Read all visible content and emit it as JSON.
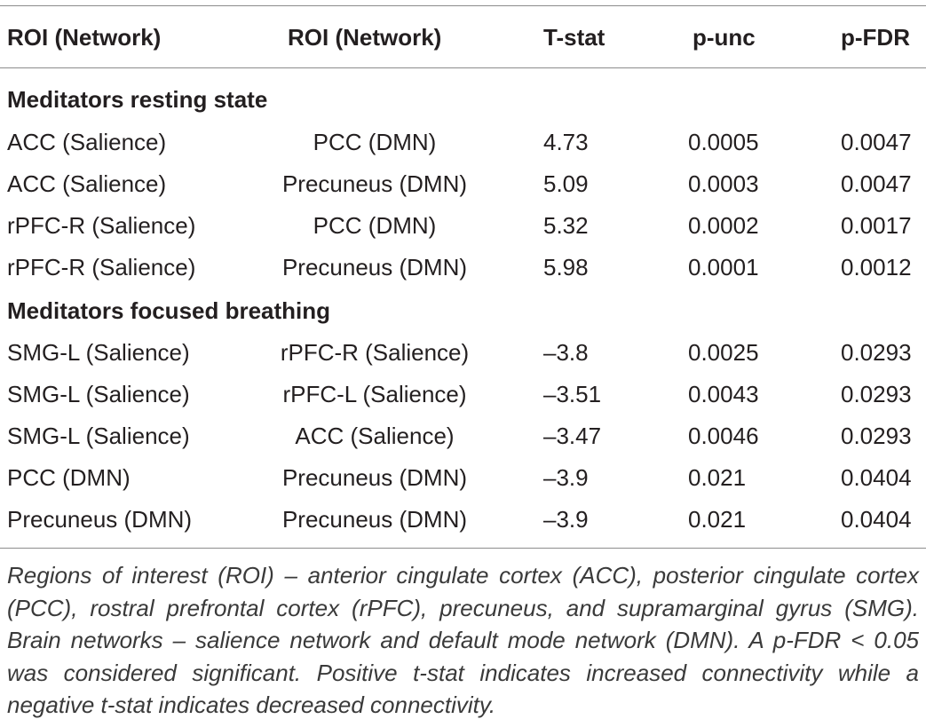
{
  "table": {
    "headers": [
      "ROI (Network)",
      "ROI (Network)",
      "T-stat",
      "p-unc",
      "p-FDR"
    ],
    "sections": [
      {
        "title": "Meditators resting state",
        "rows": [
          [
            "ACC (Salience)",
            "PCC (DMN)",
            "4.73",
            "0.0005",
            "0.0047"
          ],
          [
            "ACC (Salience)",
            "Precuneus (DMN)",
            "5.09",
            "0.0003",
            "0.0047"
          ],
          [
            "rPFC-R (Salience)",
            "PCC (DMN)",
            "5.32",
            "0.0002",
            "0.0017"
          ],
          [
            "rPFC-R (Salience)",
            "Precuneus (DMN)",
            "5.98",
            "0.0001",
            "0.0012"
          ]
        ]
      },
      {
        "title": "Meditators focused breathing",
        "rows": [
          [
            "SMG-L (Salience)",
            "rPFC-R (Salience)",
            "–3.8",
            "0.0025",
            "0.0293"
          ],
          [
            "SMG-L (Salience)",
            "rPFC-L (Salience)",
            "–3.51",
            "0.0043",
            "0.0293"
          ],
          [
            "SMG-L (Salience)",
            "ACC (Salience)",
            "–3.47",
            "0.0046",
            "0.0293"
          ],
          [
            "PCC (DMN)",
            "Precuneus (DMN)",
            "–3.9",
            "0.021",
            "0.0404"
          ],
          [
            "Precuneus (DMN)",
            "Precuneus (DMN)",
            "–3.9",
            "0.021",
            "0.0404"
          ]
        ]
      }
    ]
  },
  "footnote": "Regions of interest (ROI) – anterior cingulate cortex (ACC), posterior cingulate cortex (PCC), rostral prefrontal cortex (rPFC), precuneus, and supramarginal gyrus (SMG). Brain networks – salience network and default mode network (DMN). A p-FDR < 0.05 was considered significant. Positive t-stat indicates increased connectivity while a negative t-stat indicates decreased connectivity."
}
